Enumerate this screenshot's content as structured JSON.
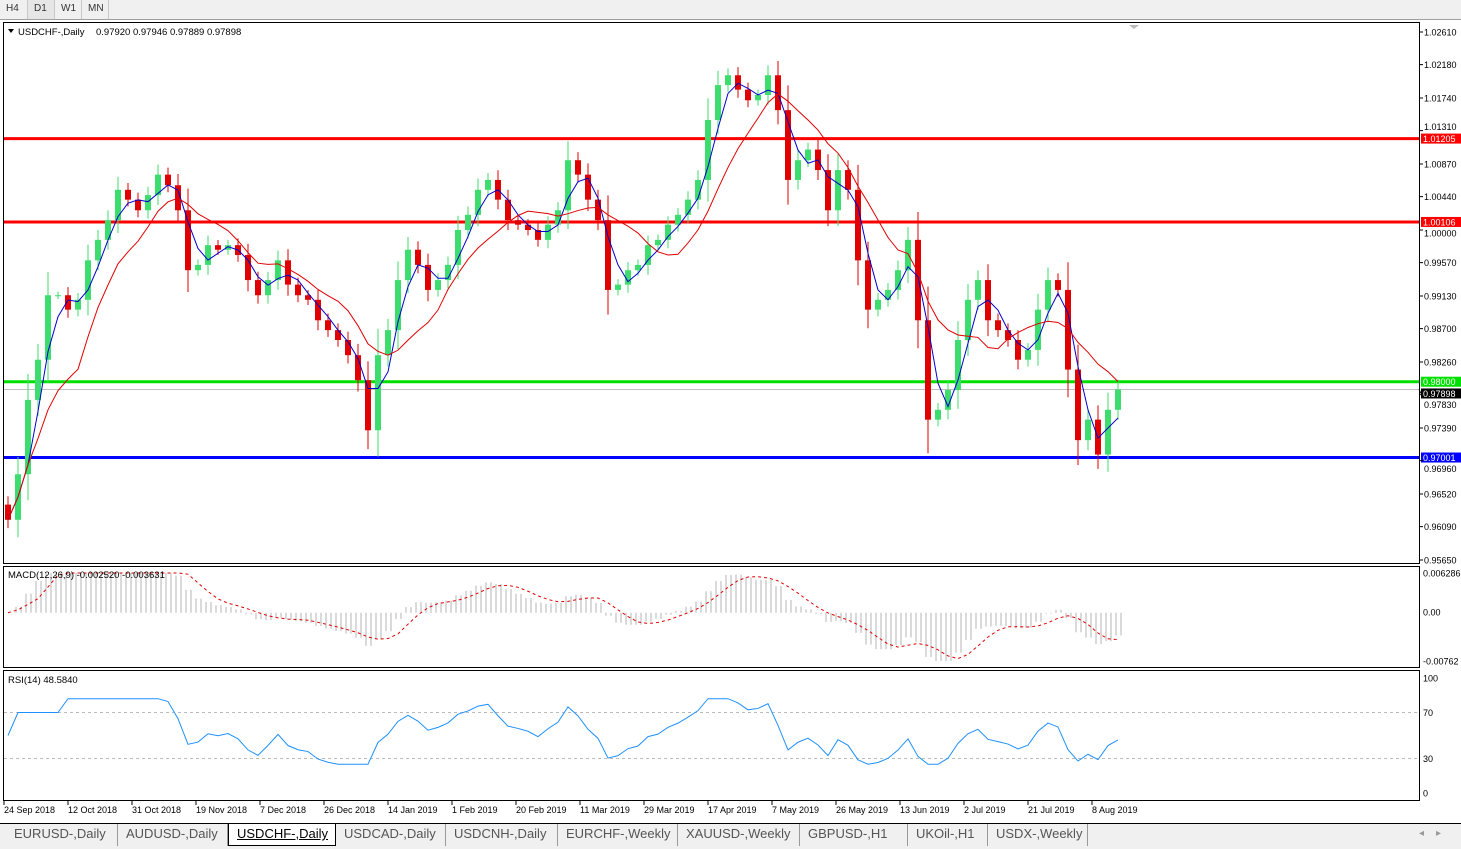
{
  "timeframes": [
    "H4",
    "D1",
    "W1",
    "MN"
  ],
  "active_timeframe": "D1",
  "header": {
    "symbol_label": "USDCHF-,Daily",
    "ohlc": "0.97920 0.97946 0.97889 0.97898"
  },
  "chart_data": {
    "type": "candlestick",
    "symbol": "USDCHF-",
    "period": "Daily",
    "ylim": [
      0.9565,
      1.0261
    ],
    "price_ticks": [
      "1.02610",
      "1.02180",
      "1.01740",
      "1.01310",
      "1.00870",
      "1.00440",
      "1.00000",
      "0.99570",
      "0.99130",
      "0.98700",
      "0.98260",
      "0.97830",
      "0.97390",
      "0.96960",
      "0.96520",
      "0.96090",
      "0.95650"
    ],
    "x_tick_labels": [
      "24 Sep 2018",
      "12 Oct 2018",
      "31 Oct 2018",
      "19 Nov 2018",
      "7 Dec 2018",
      "26 Dec 2018",
      "14 Jan 2019",
      "1 Feb 2019",
      "20 Feb 2019",
      "11 Mar 2019",
      "29 Mar 2019",
      "17 Apr 2019",
      "7 May 2019",
      "26 May 2019",
      "13 Jun 2019",
      "2 Jul 2019",
      "21 Jul 2019",
      "8 Aug 2019"
    ],
    "closes": [
      0.9618,
      0.9678,
      0.9776,
      0.9829,
      0.9914,
      0.9914,
      0.9895,
      0.9908,
      0.996,
      0.9987,
      1.0013,
      1.0053,
      1.004,
      1.0026,
      1.0046,
      1.0073,
      1.0059,
      1.0026,
      0.9947,
      0.9954,
      0.998,
      0.9974,
      0.998,
      0.9967,
      0.9934,
      0.9914,
      0.9934,
      0.996,
      0.9928,
      0.9914,
      0.9908,
      0.9881,
      0.9868,
      0.9855,
      0.9835,
      0.9802,
      0.9736,
      0.9835,
      0.9868,
      0.9934,
      0.9974,
      0.9954,
      0.9921,
      0.9934,
      0.9954,
      1.0,
      1.002,
      1.0053,
      1.0066,
      1.004,
      1.0013,
      1.0007,
      1.0,
      0.9987,
      1.0007,
      1.0026,
      1.0092,
      1.0073,
      1.004,
      1.0013,
      0.9921,
      0.9928,
      0.9947,
      0.9954,
      0.998,
      0.9987,
      1.0007,
      1.002,
      1.004,
      1.0066,
      1.0145,
      1.0191,
      1.0204,
      1.0185,
      1.0171,
      1.0178,
      1.0204,
      1.0158,
      1.0066,
      1.0092,
      1.0106,
      1.0079,
      1.0026,
      1.0079,
      1.0053,
      0.996,
      0.9895,
      0.9908,
      0.9921,
      0.9947,
      0.9987,
      0.9881,
      0.975,
      0.9763,
      0.9789,
      0.9855,
      0.9908,
      0.9934,
      0.9881,
      0.9868,
      0.9855,
      0.9829,
      0.9842,
      0.9895,
      0.9934,
      0.9921,
      0.9816,
      0.9723,
      0.975,
      0.9704,
      0.9763,
      0.97898
    ],
    "moving_averages": [
      {
        "color": "#0000cc"
      },
      {
        "color": "#e00000"
      }
    ],
    "horizontal_lines": [
      {
        "price": "1.01205",
        "color": "#ff0000"
      },
      {
        "price": "1.00106",
        "color": "#ff0000"
      },
      {
        "price": "0.98000",
        "color": "#00e000"
      },
      {
        "price": "0.97001",
        "color": "#0000ff"
      },
      {
        "price": "0.97898",
        "color": "#000000",
        "current": true
      }
    ],
    "bull_color": "#3cdc6e",
    "bear_color": "#e00000",
    "macd": {
      "label": "MACD(12,26,9) -0.002520 -0.003631",
      "ticks": [
        "0.006286",
        "0.00",
        "-0.00762"
      ],
      "ylim": [
        -0.00762,
        0.006286
      ]
    },
    "rsi": {
      "label": "RSI(14) 48.5840",
      "ticks": [
        "100",
        "70",
        "30",
        "0"
      ],
      "levels": [
        70,
        30
      ]
    }
  },
  "tabs": [
    "EURUSD-,Daily",
    "AUDUSD-,Daily",
    "USDCHF-,Daily",
    "USDCAD-,Daily",
    "USDCNH-,Daily",
    "EURCHF-,Weekly",
    "XAUUSD-,Weekly",
    "GBPUSD-,H1",
    "UKOil-,H1",
    "USDX-,Weekly"
  ],
  "active_tab": "USDCHF-,Daily"
}
